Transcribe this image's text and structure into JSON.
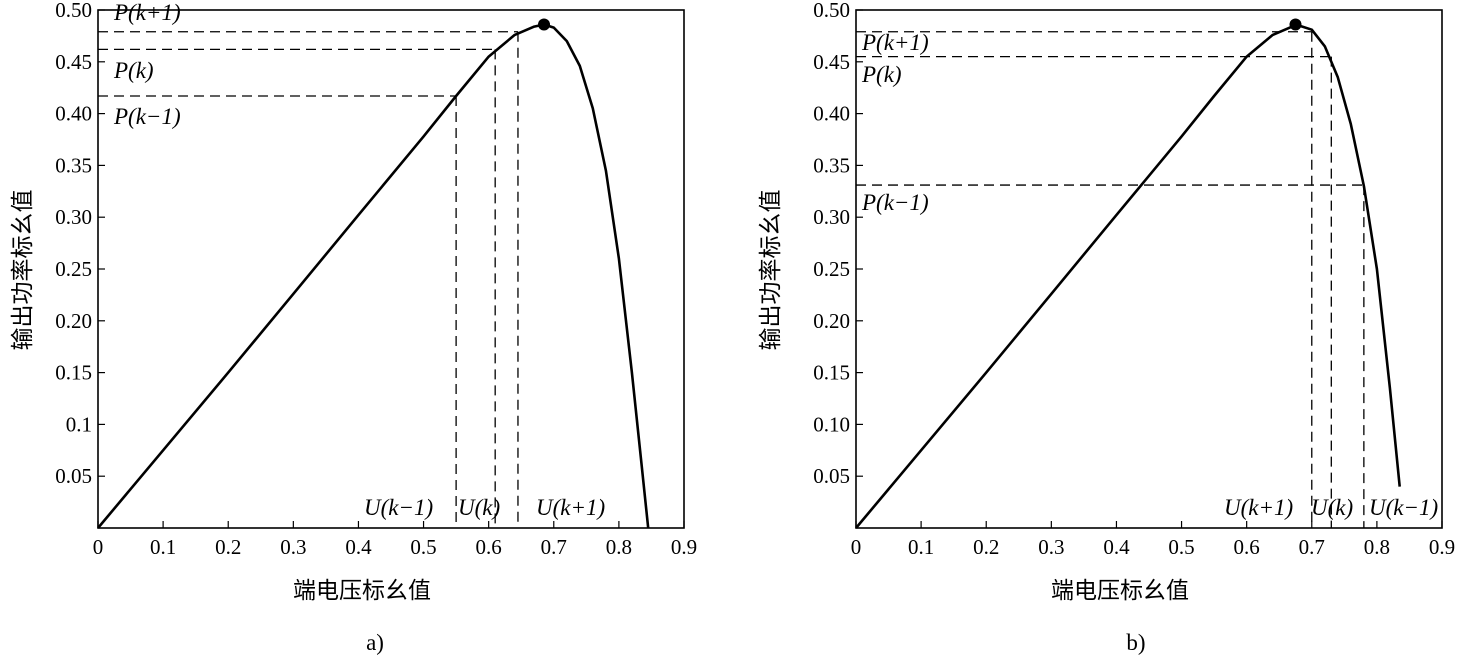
{
  "chart_data": [
    {
      "type": "line",
      "caption": "a)",
      "xlabel": "端电压标幺值",
      "ylabel": "输出功率标幺值",
      "xlim": [
        0,
        0.9
      ],
      "ylim": [
        0,
        0.5
      ],
      "x_ticks": [
        "0",
        "0.1",
        "0.2",
        "0.3",
        "0.4",
        "0.5",
        "0.6",
        "0.7",
        "0.8",
        "0.9"
      ],
      "y_ticks": [
        "0.05",
        "0.1",
        "0.15",
        "0.20",
        "0.25",
        "0.30",
        "0.35",
        "0.40",
        "0.45",
        "0.50"
      ],
      "y_tick_values": [
        0.05,
        0.1,
        0.15,
        0.2,
        0.25,
        0.3,
        0.35,
        0.4,
        0.45,
        0.5
      ],
      "curve": {
        "x": [
          0,
          0.1,
          0.2,
          0.3,
          0.4,
          0.5,
          0.55,
          0.6,
          0.64,
          0.67,
          0.685,
          0.7,
          0.72,
          0.74,
          0.76,
          0.78,
          0.8,
          0.82,
          0.835,
          0.845
        ],
        "y": [
          0,
          0.075,
          0.15,
          0.226,
          0.302,
          0.378,
          0.417,
          0.455,
          0.476,
          0.484,
          0.486,
          0.483,
          0.47,
          0.446,
          0.405,
          0.345,
          0.26,
          0.15,
          0.06,
          0
        ]
      },
      "maximum_point": {
        "x": 0.685,
        "y": 0.486
      },
      "operating_points": [
        {
          "u_label": "U(k−1)",
          "p_label": "P(k−1)",
          "x": 0.55,
          "y": 0.417
        },
        {
          "u_label": "U(k)",
          "p_label": "P(k)",
          "x": 0.61,
          "y": 0.462
        },
        {
          "u_label": "U(k+1)",
          "p_label": "P(k+1)",
          "x": 0.645,
          "y": 0.479
        }
      ]
    },
    {
      "type": "line",
      "caption": "b)",
      "xlabel": "端电压标幺值",
      "ylabel": "输出功率标幺值",
      "xlim": [
        0,
        0.9
      ],
      "ylim": [
        0,
        0.5
      ],
      "x_ticks": [
        "0",
        "0.1",
        "0.2",
        "0.3",
        "0.4",
        "0.5",
        "0.6",
        "0.7",
        "0.8",
        "0.9"
      ],
      "y_ticks": [
        "0.05",
        "0.10",
        "0.15",
        "0.20",
        "0.25",
        "0.30",
        "0.35",
        "0.40",
        "0.45",
        "0.50"
      ],
      "y_tick_values": [
        0.05,
        0.1,
        0.15,
        0.2,
        0.25,
        0.3,
        0.35,
        0.4,
        0.45,
        0.5
      ],
      "curve": {
        "x": [
          0,
          0.1,
          0.2,
          0.3,
          0.4,
          0.5,
          0.55,
          0.6,
          0.64,
          0.67,
          0.68,
          0.7,
          0.72,
          0.74,
          0.76,
          0.78,
          0.8,
          0.82,
          0.835
        ],
        "y": [
          0,
          0.075,
          0.15,
          0.226,
          0.302,
          0.378,
          0.417,
          0.455,
          0.476,
          0.484,
          0.485,
          0.481,
          0.465,
          0.435,
          0.39,
          0.33,
          0.25,
          0.135,
          0.04
        ]
      },
      "maximum_point": {
        "x": 0.675,
        "y": 0.486
      },
      "operating_points": [
        {
          "u_label": "U(k+1)",
          "p_label": "P(k+1)",
          "x": 0.7,
          "y": 0.479
        },
        {
          "u_label": "U(k)",
          "p_label": "P(k)",
          "x": 0.73,
          "y": 0.455
        },
        {
          "u_label": "U(k−1)",
          "p_label": "P(k−1)",
          "x": 0.78,
          "y": 0.331
        }
      ]
    }
  ]
}
